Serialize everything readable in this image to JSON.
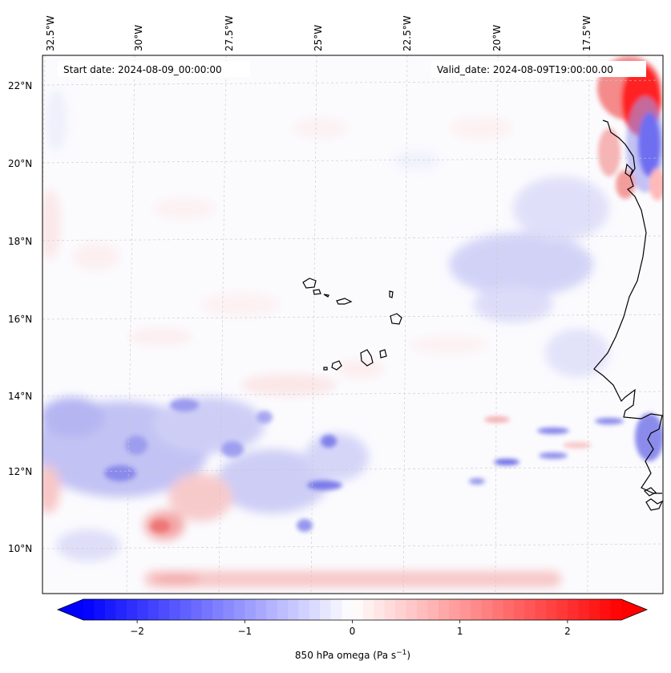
{
  "map": {
    "start_date_label": "Start date: 2024-08-09_00:00:00",
    "valid_date_label": "Valid_date: 2024-08-09T19:00:00.00",
    "lon_ticks": [
      "32.5°W",
      "30°W",
      "27.5°W",
      "25°W",
      "22.5°W",
      "20°W",
      "17.5°W"
    ],
    "lat_ticks": [
      "22°N",
      "20°N",
      "18°N",
      "16°N",
      "14°N",
      "12°N",
      "10°N"
    ],
    "gridlines": true
  },
  "colorbar": {
    "label": "850 hPa omega (Pa s",
    "label_sup": "−1",
    "label_end": ")",
    "ticks": [
      "−2",
      "−1",
      "0",
      "1",
      "2"
    ],
    "min": -2.5,
    "max": 2.5,
    "extend": "both",
    "cmap": "bwr",
    "color_min": "#0000ff",
    "color_mid": "#ffffff",
    "color_max": "#ff0000"
  },
  "chart_data": {
    "type": "heatmap",
    "field": "850 hPa omega",
    "lon_range": [
      -33,
      -15.5
    ],
    "lat_range": [
      9,
      22.5
    ]
  }
}
